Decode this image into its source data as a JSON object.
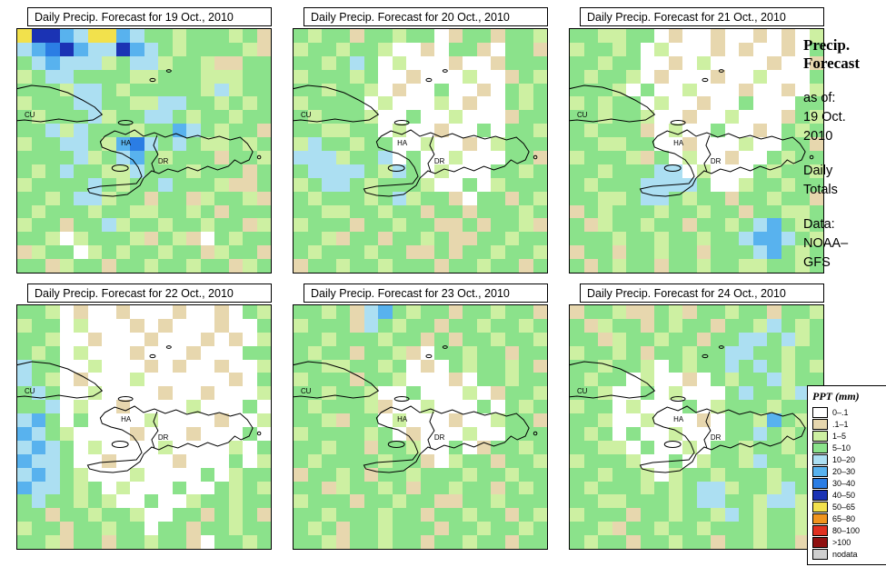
{
  "sidebar": {
    "title_lines": [
      "Precip.",
      "Forecast"
    ],
    "as_of_label": "as of:",
    "as_of_lines": [
      "19 Oct.",
      "2010"
    ],
    "totals_lines": [
      "Daily",
      "Totals"
    ],
    "data_label": "Data:",
    "data_lines": [
      "NOAA–",
      "GFS"
    ]
  },
  "chart_data": {
    "type": "heatmap",
    "map_labels": [
      {
        "text": "CU"
      },
      {
        "text": "HA"
      },
      {
        "text": "DR"
      }
    ],
    "palette": {
      ".": "#ffffff",
      "t": "#e7d7ae",
      "l": "#cdf0a2",
      "g": "#8be28b",
      "c": "#acdff2",
      "b": "#58b2ee",
      "B": "#2b7de4",
      "N": "#1b33b4",
      "y": "#f2e14c",
      "o": "#f0941e",
      "r": "#e03020",
      "d": "#8f1010",
      "n": "#cfcfcf"
    },
    "legend": {
      "title": "PPT (mm)",
      "entries": [
        {
          "label": "0–.1",
          "key": "."
        },
        {
          "label": ".1–1",
          "key": "t"
        },
        {
          "label": "1–5",
          "key": "l"
        },
        {
          "label": "5–10",
          "key": "g"
        },
        {
          "label": "10–20",
          "key": "c"
        },
        {
          "label": "20–30",
          "key": "b"
        },
        {
          "label": "30–40",
          "key": "B"
        },
        {
          "label": "40–50",
          "key": "N"
        },
        {
          "label": "50–65",
          "key": "y"
        },
        {
          "label": "65–80",
          "key": "o"
        },
        {
          "label": "80–100",
          "key": "r"
        },
        {
          "label": ">100",
          "key": "d"
        },
        {
          "label": "nodata",
          "key": "n"
        }
      ]
    },
    "panels": [
      {
        "title": "Daily Precip. Forecast for 19 Oct., 2010",
        "grid": [
          "yNNbcyybcgglggglgt",
          "cbBNbccNbcglgggglt",
          "gcbccclgcclgglttgg",
          "lgccggggllggglllgg",
          "ggglccglggggglclgg",
          "lgggccggllccgglglg",
          "glgggclggccglgglgg",
          "ggclcggglggbcglggt",
          "lggccglbBcgcgllglg",
          "ggggclgcbglgggtggl",
          "glgcggllcggglgggtg",
          "lggggcglggcggglttg",
          "gglgcclggtggtlgglt",
          "glggglggllgglgtggg",
          "lggtggclgglgglggtl",
          "ggl.lgggltglt.glgg",
          "tlgg.lglgglggtlggt",
          "ggtlggtgglgglggtlg"
        ]
      },
      {
        "title": "Daily Precip. Forecast for 20 Oct., 2010",
        "grid": [
          "glggtgglgg.tggtggl",
          "lgglggl..t.ggt.ggt",
          "gglgcg.l...t..tggg",
          "lggglg..t...l..tgl",
          "gglggl.t..g..t.glg",
          "lgggg.l...l.t..glg",
          "glgggl..g..l...tgg",
          "ggllgg.l..t..g.ggl",
          "lcgglgg..l..t.lggg",
          "ccclggc.g..l...ggt",
          "gccccglcg.l...gglg",
          "lgccglgggl..g.lggg",
          "glggglgclggt.ggtgl",
          "ggllgglggtggtggglg",
          "lgggtgglggttgtgglt",
          "ggltggtgglgttgglgg",
          "glggglggttgtgglggl",
          "tgglgglgggtgglggtg"
        ]
      },
      {
        "title": "Daily Precip. Forecast for 21 Oct., 2010",
        "grid": [
          "ggllgg.t..t..t.t.l",
          "lgglg.l...t.t..t.g",
          "gglgg..t.l....t..t",
          "glggl.t...t..l...g",
          "gggl.g..l...t..t.l",
          "lglgg.l..t..g...gg",
          "gglggl..t..l...tgl",
          "glgggt.l..g..t.glg",
          "ggllgg..t...l..ggt",
          "lgggltg.l..t..glgg",
          "gglgggcc.l...glggl",
          "glgggccccg..lgglgg",
          "ggllgccglggtgglggt",
          "tglggglgglggtggllg",
          "gtlgglggtgglgcbglg",
          "ggglgglgglggcbbcgl",
          "tggtgglggtgggcbglg",
          "gtglggtgglggllgglg"
        ]
      },
      {
        "title": "Daily Precip. Forecast for 22 Oct., 2010",
        "grid": [
          "ggl.t..t...t..t.gl",
          "lgg.l...t.t...t..g",
          "ggl..t...t...t.t.l",
          "glg.l...t...t...gg",
          "cgg..l...t.t..t..l",
          "cgl.t...l......t.g",
          "gcg..l....t..t...l",
          "ggc.l..t....l...g.",
          "cbg.g....l....t..l",
          "bcgl....t...t...g.",
          "cbcg.l....l....l.g",
          "bccg..t....t...g.l",
          "cbcgl...l....g.lgg",
          "bccglg.l...g..glgl",
          "gcgglgl..g..lgglgg",
          "ggtgglggl..ggtglgt",
          "lggtgglgg.ggtgglgg",
          "ggltggtgglggt.gglg"
        ]
      },
      {
        "title": "Daily Precip. Forecast for 23 Oct., 2010",
        "grid": [
          "gglgtcbglggtgglggt",
          "lgggtcglggtgglgglg",
          "gglggglggtgtgglggl",
          "glggtgglt.gglggtgg",
          "ggllgglg.t.glgglgt",
          "lgggtggl...t.gglgg",
          "gglggl..g...l.tggl",
          "glggglt..l...g.glg",
          "ggltgg.l...t..lggt",
          "lgggglg.t...l..ggg",
          "gglggtggl..g.tgglg",
          "glgggglggt.lggtggl",
          "tgglgtgglggglgglgg",
          "ggtlgglgtgglggtglg",
          "lgggtgglggttgglggg",
          "gglggglggtgglggtgl",
          "glgtgglgggtgglgglg",
          "ggltgglggtgglggtgg"
        ]
      },
      {
        "title": "Daily Precip. Forecast for 24 Oct., 2010",
        "grid": [
          "tgglttgltgglggtggl",
          "gtlggtglggtgglcglg",
          "ggtlgglggtggccgclg",
          "lgglgtgglggccgglgg",
          "gglggl.glggcgcglgl",
          "glgg.l..t.glggclgg",
          "ggl..g.l...gcgglcg",
          "lgg.l...g.lggglggc",
          "ggl..l...t.gglbglg",
          "glg.g..l...ggcglgg",
          "ggll.g..l.gglgglgc",
          "lgggl..g.lgglcgglg",
          "gglggl.lgglggglggl",
          "glggglglgcclgglcgg",
          "ggllggglgccgglcclg",
          "lgggtgglgglcglgglg",
          "ggltgglgglggglgglg",
          "glggtgglggtgglggtg"
        ]
      }
    ]
  }
}
